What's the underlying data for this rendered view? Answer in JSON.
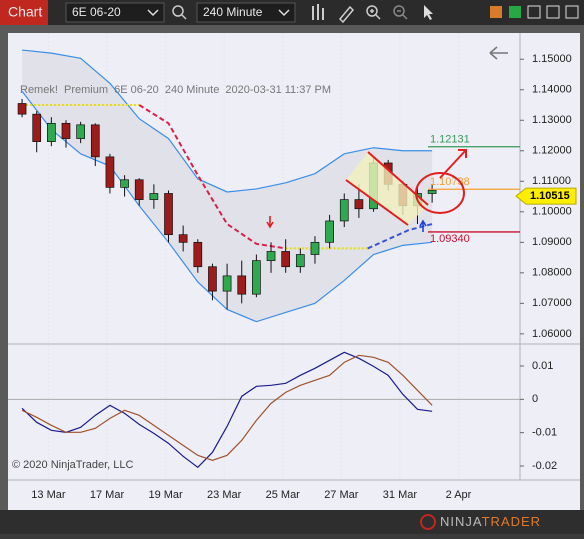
{
  "toolbar": {
    "tab": "Chart",
    "instrument": "6E 06-20",
    "interval": "240 Minute"
  },
  "chart_data": {
    "type": "candlestick",
    "title": "Remek!  Premium  6E 06-20  240 Minute  2020-03-31 11:37 PM",
    "x": [
      -0.9,
      -0.4,
      0.1,
      0.6,
      1.1,
      1.6,
      2.1,
      2.6,
      3.1,
      3.6,
      4.1,
      4.6,
      5.1,
      5.6,
      6.1,
      6.6,
      7.1,
      7.6,
      8.1,
      8.6,
      9.1,
      9.6,
      10.1,
      10.6,
      11.1,
      11.6,
      12.1,
      12.6,
      13.1
    ],
    "open": [
      1.1355,
      1.132,
      1.123,
      1.129,
      1.124,
      1.1285,
      1.118,
      1.108,
      1.1105,
      1.104,
      1.106,
      1.0925,
      1.09,
      1.082,
      1.074,
      1.079,
      1.073,
      1.084,
      1.087,
      1.082,
      1.086,
      1.09,
      1.097,
      1.104,
      1.101,
      1.116,
      1.109,
      1.102,
      1.106
    ],
    "high": [
      1.137,
      1.133,
      1.131,
      1.13,
      1.1295,
      1.129,
      1.119,
      1.112,
      1.111,
      1.109,
      1.107,
      1.0955,
      1.091,
      1.083,
      1.083,
      1.084,
      1.086,
      1.09,
      1.091,
      1.088,
      1.092,
      1.099,
      1.106,
      1.109,
      1.118,
      1.117,
      1.11,
      1.108,
      1.109
    ],
    "low": [
      1.131,
      1.1195,
      1.1215,
      1.121,
      1.1225,
      1.115,
      1.106,
      1.105,
      1.102,
      1.101,
      1.09,
      1.087,
      1.08,
      1.071,
      1.068,
      1.07,
      1.072,
      1.08,
      1.08,
      1.08,
      1.083,
      1.088,
      1.095,
      1.098,
      1.1,
      1.107,
      1.099,
      1.096,
      1.103
    ],
    "close": [
      1.132,
      1.123,
      1.129,
      1.124,
      1.1285,
      1.118,
      1.108,
      1.1105,
      1.104,
      1.106,
      1.0925,
      1.09,
      1.082,
      1.074,
      1.079,
      1.073,
      1.084,
      1.087,
      1.082,
      1.086,
      1.09,
      1.097,
      1.104,
      1.101,
      1.116,
      1.109,
      1.102,
      1.106,
      1.107
    ],
    "up_color": "#2fa84f",
    "down_color": "#9c1c1c",
    "xlim": [
      -1.38,
      16.1
    ],
    "xticks": [
      {
        "value": 0,
        "label": "13 Mar"
      },
      {
        "value": 2,
        "label": "17 Mar"
      },
      {
        "value": 4,
        "label": "19 Mar"
      },
      {
        "value": 6,
        "label": "23 Mar"
      },
      {
        "value": 8,
        "label": "25 Mar"
      },
      {
        "value": 10,
        "label": "27 Mar"
      },
      {
        "value": 12,
        "label": "31 Mar"
      },
      {
        "value": 14,
        "label": "2 Apr"
      }
    ],
    "ylim": [
      1.057,
      1.1586
    ],
    "yticks": [
      {
        "value": 1.15,
        "label": "1.15000"
      },
      {
        "value": 1.14,
        "label": "1.14000"
      },
      {
        "value": 1.13,
        "label": "1.13000"
      },
      {
        "value": 1.12,
        "label": "1.12000"
      },
      {
        "value": 1.11,
        "label": "1.11000"
      },
      {
        "value": 1.1,
        "label": "1.10000"
      },
      {
        "value": 1.09,
        "label": "1.09000"
      },
      {
        "value": 1.08,
        "label": "1.08000"
      },
      {
        "value": 1.07,
        "label": "1.07000"
      },
      {
        "value": 1.06,
        "label": "1.06000"
      }
    ],
    "bands": {
      "color": "#3a8ee6",
      "x": [
        -0.9,
        0.1,
        1.1,
        2.1,
        3.1,
        4.1,
        5.1,
        6.1,
        7.1,
        8.1,
        9.1,
        10.1,
        11.1,
        12.1,
        13.1
      ],
      "upper": [
        1.153,
        1.152,
        1.1503,
        1.1421,
        1.1305,
        1.124,
        1.1108,
        1.1065,
        1.1075,
        1.1095,
        1.1125,
        1.119,
        1.121,
        1.12,
        1.12
      ],
      "lower": [
        1.1395,
        1.127,
        1.119,
        1.115,
        1.102,
        1.09,
        1.077,
        1.068,
        1.064,
        1.067,
        1.07,
        1.0775,
        1.086,
        1.089,
        1.09
      ]
    },
    "overlays": [
      {
        "color": "#e8dc00",
        "dash": "dotted",
        "x": [
          -0.9,
          3.1
        ],
        "values": [
          1.135,
          1.135
        ]
      },
      {
        "color": "#d8204a",
        "dash": "dashed",
        "x": [
          3.1,
          4.1,
          5.1,
          6.1,
          7.1,
          8.1
        ],
        "values": [
          1.135,
          1.129,
          1.112,
          1.096,
          1.0895,
          1.088
        ]
      },
      {
        "color": "#e8dc00",
        "dash": "dotted",
        "x": [
          8.1,
          10.9
        ],
        "values": [
          1.088,
          1.088
        ]
      },
      {
        "color": "#3a50d8",
        "dash": "dashed",
        "x": [
          10.9,
          12.3,
          13.1
        ],
        "values": [
          1.088,
          1.094,
          1.096
        ]
      }
    ],
    "price_lines": [
      {
        "value": 1.12131,
        "color": "#3a9a5a"
      },
      {
        "value": 1.10738,
        "color": "#f0a030"
      },
      {
        "value": 1.0934,
        "label": "1.09340",
        "color": "#c8102e"
      }
    ],
    "last_price": 1.10515,
    "oscillator": {
      "ylim": [
        -0.0242,
        0.0163
      ],
      "yticks": [
        0.01,
        0,
        -0.01,
        -0.02
      ],
      "series": [
        {
          "color": "#1c1c8c",
          "values": [
            -0.0027,
            -0.0069,
            -0.0093,
            -0.0099,
            -0.0084,
            -0.0048,
            -0.0018,
            -0.0042,
            -0.0075,
            -0.0102,
            -0.0132,
            -0.0171,
            -0.0204,
            -0.0159,
            -0.0081,
            0.0009,
            0.0039,
            0.0042,
            0.0048,
            0.0072,
            0.0093,
            0.0117,
            0.0141,
            0.0123,
            0.0099,
            0.0072,
            0.0015,
            -0.003,
            -0.0036
          ]
        },
        {
          "color": "#a0522d",
          "values": [
            -0.0033,
            -0.0054,
            -0.0078,
            -0.0099,
            -0.0099,
            -0.0087,
            -0.0057,
            -0.0033,
            -0.0048,
            -0.0078,
            -0.0108,
            -0.0138,
            -0.0168,
            -0.0183,
            -0.0168,
            -0.0123,
            -0.0063,
            -0.0012,
            0.0021,
            0.0042,
            0.0057,
            0.0072,
            0.0111,
            0.0132,
            0.0126,
            0.0111,
            0.0072,
            0.0027,
            -0.0018
          ]
        }
      ]
    },
    "copyright": "© 2020 NinjaTrader, LLC"
  },
  "footer": {
    "logo_a": "NINJA",
    "logo_b": "TRADER"
  }
}
